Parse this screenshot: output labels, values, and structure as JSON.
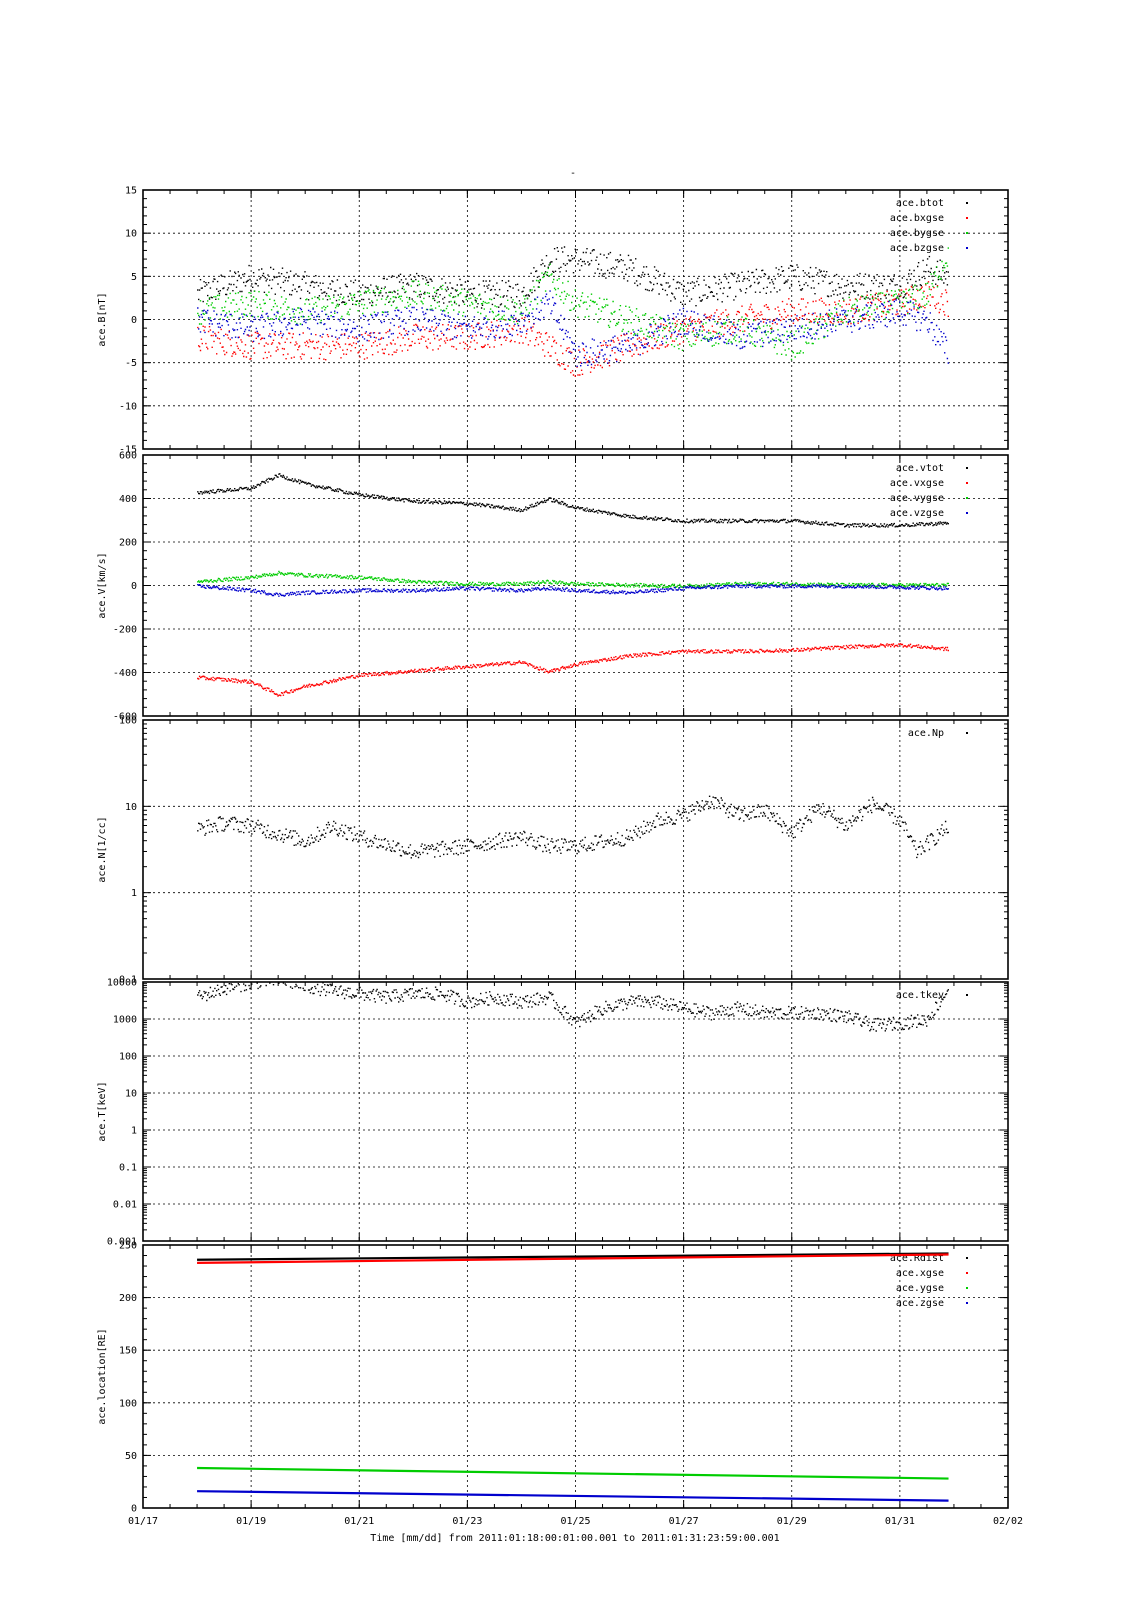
{
  "figure": {
    "title": "-",
    "xlabel": "Time [mm/dd]  from 2011:01:18:00:01:00.001  to  2011:01:31:23:59:00.001",
    "x_ticks": [
      "01/17",
      "01/19",
      "01/21",
      "01/23",
      "01/25",
      "01/27",
      "01/29",
      "01/31",
      "02/02"
    ],
    "x_range_days": [
      "2011-01-17",
      "2011-02-02"
    ]
  },
  "chart_data": [
    {
      "type": "scatter",
      "ylabel": "ace.B[nT]",
      "ylim": [
        -15,
        15
      ],
      "yscale": "linear",
      "y_ticks": [
        "15",
        "10",
        "5",
        "0",
        "-5",
        "-10",
        "-15"
      ],
      "y_tick_values": [
        15,
        10,
        5,
        0,
        -5,
        -10,
        -15
      ],
      "grid": true,
      "legend_position": "top-right",
      "series": [
        {
          "name": "ace.btot",
          "color": "#000000",
          "x": [
            "01/18",
            "01/19",
            "01/20",
            "01/21",
            "01/22",
            "01/23",
            "01/24",
            "01/24.5",
            "01/25",
            "01/26",
            "01/27",
            "01/28",
            "01/29",
            "01/30",
            "01/31",
            "01/31.5",
            "01/31.9"
          ],
          "y": [
            3,
            5,
            4,
            3,
            4,
            3,
            3,
            7,
            7,
            6,
            3,
            4,
            5,
            4,
            4,
            6,
            5
          ]
        },
        {
          "name": "ace.bxgse",
          "color": "#ff0000",
          "x": [
            "01/18",
            "01/19",
            "01/20",
            "01/21",
            "01/22",
            "01/23",
            "01/24",
            "01/24.5",
            "01/25",
            "01/26",
            "01/27",
            "01/28",
            "01/29",
            "01/30",
            "01/31",
            "01/31.5",
            "01/31.9"
          ],
          "y": [
            -2,
            -3,
            -3,
            -3,
            -2,
            -2,
            -1,
            -3,
            -5,
            -3,
            -1,
            0,
            1,
            1,
            2,
            3,
            2
          ]
        },
        {
          "name": "ace.bygse",
          "color": "#00cc00",
          "x": [
            "01/18",
            "01/19",
            "01/20",
            "01/21",
            "01/22",
            "01/23",
            "01/24",
            "01/24.5",
            "01/25",
            "01/26",
            "01/27",
            "01/28",
            "01/29",
            "01/30",
            "01/31",
            "01/31.5",
            "01/31.9"
          ],
          "y": [
            1,
            2,
            1,
            2,
            3,
            2,
            1,
            5,
            2,
            0,
            -2,
            -1,
            -3,
            1,
            2,
            3,
            8
          ]
        },
        {
          "name": "ace.bzgse",
          "color": "#0000cc",
          "x": [
            "01/18",
            "01/19",
            "01/20",
            "01/21",
            "01/22",
            "01/23",
            "01/24",
            "01/24.5",
            "01/25",
            "01/26",
            "01/27",
            "01/28",
            "01/29",
            "01/30",
            "01/31",
            "01/31.5",
            "01/31.9"
          ],
          "y": [
            0,
            -1,
            0,
            -1,
            0,
            -1,
            0,
            2,
            -4,
            -3,
            0,
            -2,
            -1,
            0,
            1,
            0,
            -4
          ]
        }
      ]
    },
    {
      "type": "scatter",
      "ylabel": "ace.V[km/s]",
      "ylim": [
        -600,
        600
      ],
      "yscale": "linear",
      "y_ticks": [
        "600",
        "400",
        "200",
        "0",
        "-200",
        "-400",
        "-600"
      ],
      "y_tick_values": [
        600,
        400,
        200,
        0,
        -200,
        -400,
        -600
      ],
      "grid": true,
      "legend_position": "top-right",
      "series": [
        {
          "name": "ace.vtot",
          "color": "#000000",
          "x": [
            "01/18",
            "01/19",
            "01/19.5",
            "01/20",
            "01/21",
            "01/22",
            "01/23",
            "01/24",
            "01/24.5",
            "01/25",
            "01/26",
            "01/27",
            "01/28",
            "01/29",
            "01/30",
            "01/31",
            "01/31.9"
          ],
          "y": [
            430,
            450,
            510,
            470,
            420,
            390,
            380,
            350,
            400,
            360,
            320,
            300,
            300,
            300,
            280,
            280,
            290
          ]
        },
        {
          "name": "ace.vxgse",
          "color": "#ff0000",
          "x": [
            "01/18",
            "01/19",
            "01/19.5",
            "01/20",
            "01/21",
            "01/22",
            "01/23",
            "01/24",
            "01/24.5",
            "01/25",
            "01/26",
            "01/27",
            "01/28",
            "01/29",
            "01/30",
            "01/31",
            "01/31.9"
          ],
          "y": [
            -420,
            -440,
            -500,
            -460,
            -410,
            -390,
            -370,
            -350,
            -395,
            -360,
            -320,
            -300,
            -300,
            -295,
            -280,
            -270,
            -290
          ]
        },
        {
          "name": "ace.vygse",
          "color": "#00cc00",
          "x": [
            "01/18",
            "01/19",
            "01/19.5",
            "01/20",
            "01/21",
            "01/22",
            "01/23",
            "01/24",
            "01/24.5",
            "01/25",
            "01/26",
            "01/27",
            "01/28",
            "01/29",
            "01/30",
            "01/31",
            "01/31.9"
          ],
          "y": [
            20,
            40,
            60,
            50,
            40,
            20,
            10,
            10,
            20,
            10,
            5,
            0,
            10,
            10,
            5,
            5,
            5
          ]
        },
        {
          "name": "ace.vzgse",
          "color": "#0000cc",
          "x": [
            "01/18",
            "01/19",
            "01/19.5",
            "01/20",
            "01/21",
            "01/22",
            "01/23",
            "01/24",
            "01/24.5",
            "01/25",
            "01/26",
            "01/27",
            "01/28",
            "01/29",
            "01/30",
            "01/31",
            "01/31.9"
          ],
          "y": [
            0,
            -20,
            -40,
            -30,
            -20,
            -20,
            -10,
            -20,
            -10,
            -20,
            -30,
            -10,
            0,
            0,
            0,
            -5,
            -10
          ]
        }
      ]
    },
    {
      "type": "scatter",
      "ylabel": "ace.N[1/cc]",
      "ylim": [
        0.1,
        100
      ],
      "yscale": "log",
      "y_ticks": [
        "100",
        "10",
        "1",
        "0.1"
      ],
      "y_tick_values": [
        100,
        10,
        1,
        0.1
      ],
      "grid": true,
      "legend_position": "top-right",
      "series": [
        {
          "name": "ace.Np",
          "color": "#000000",
          "x": [
            "01/18",
            "01/18.5",
            "01/19",
            "01/20",
            "01/20.5",
            "01/21",
            "01/22",
            "01/23",
            "01/24",
            "01/24.5",
            "01/25",
            "01/26",
            "01/26.5",
            "01/27",
            "01/27.5",
            "01/28",
            "01/28.5",
            "01/29",
            "01/29.5",
            "01/30",
            "01/30.5",
            "01/31",
            "01/31.3",
            "01/31.9"
          ],
          "y": [
            5.5,
            6.5,
            6,
            4,
            6,
            4.5,
            3,
            3.5,
            4.5,
            3.5,
            3.5,
            4.5,
            7,
            8,
            12,
            8,
            9,
            5,
            10,
            6,
            11,
            7,
            3,
            6
          ]
        }
      ]
    },
    {
      "type": "scatter",
      "ylabel": "ace.T[keV]",
      "ylim": [
        0.001,
        10000
      ],
      "yscale": "log",
      "y_ticks": [
        "10000",
        "1000",
        "100",
        "10",
        "1",
        "0.1",
        "0.01",
        "0.001"
      ],
      "y_tick_values": [
        10000,
        1000,
        100,
        10,
        1,
        0.1,
        0.01,
        0.001
      ],
      "grid": true,
      "legend_position": "top-right",
      "series": [
        {
          "name": "ace.tkev",
          "color": "#000000",
          "x": [
            "01/18",
            "01/18.5",
            "01/19",
            "01/19.5",
            "01/20",
            "01/20.5",
            "01/21",
            "01/21.5",
            "01/22",
            "01/22.5",
            "01/23",
            "01/23.5",
            "01/24",
            "01/24.5",
            "01/25",
            "01/25.5",
            "01/26",
            "01/26.5",
            "01/27",
            "01/27.5",
            "01/28",
            "01/28.5",
            "01/29.5",
            "01/30",
            "01/30.5",
            "01/31",
            "01/31.5",
            "01/31.9"
          ],
          "y": [
            4000,
            7000,
            10000,
            12000,
            8000,
            6000,
            5000,
            4000,
            5000,
            5000,
            3000,
            4000,
            3000,
            4000,
            800,
            2000,
            3000,
            3000,
            2000,
            1500,
            2000,
            1500,
            1500,
            1200,
            700,
            800,
            1000,
            7000
          ]
        }
      ]
    },
    {
      "type": "line",
      "ylabel": "ace.location[RE]",
      "ylim": [
        0,
        250
      ],
      "yscale": "linear",
      "y_ticks": [
        "250",
        "200",
        "150",
        "100",
        "50",
        "0"
      ],
      "y_tick_values": [
        250,
        200,
        150,
        100,
        50,
        0
      ],
      "grid": true,
      "legend_position": "top-right",
      "series": [
        {
          "name": "ace.Rdist",
          "color": "#000000",
          "x": [
            "01/18",
            "01/31.9"
          ],
          "y": [
            236,
            242
          ]
        },
        {
          "name": "ace.xgse",
          "color": "#ff0000",
          "x": [
            "01/18",
            "01/31.9"
          ],
          "y": [
            233,
            241
          ]
        },
        {
          "name": "ace.ygse",
          "color": "#00cc00",
          "x": [
            "01/18",
            "01/31.9"
          ],
          "y": [
            38,
            28
          ]
        },
        {
          "name": "ace.zgse",
          "color": "#0000cc",
          "x": [
            "01/18",
            "01/31.9"
          ],
          "y": [
            16,
            7
          ]
        }
      ]
    }
  ]
}
